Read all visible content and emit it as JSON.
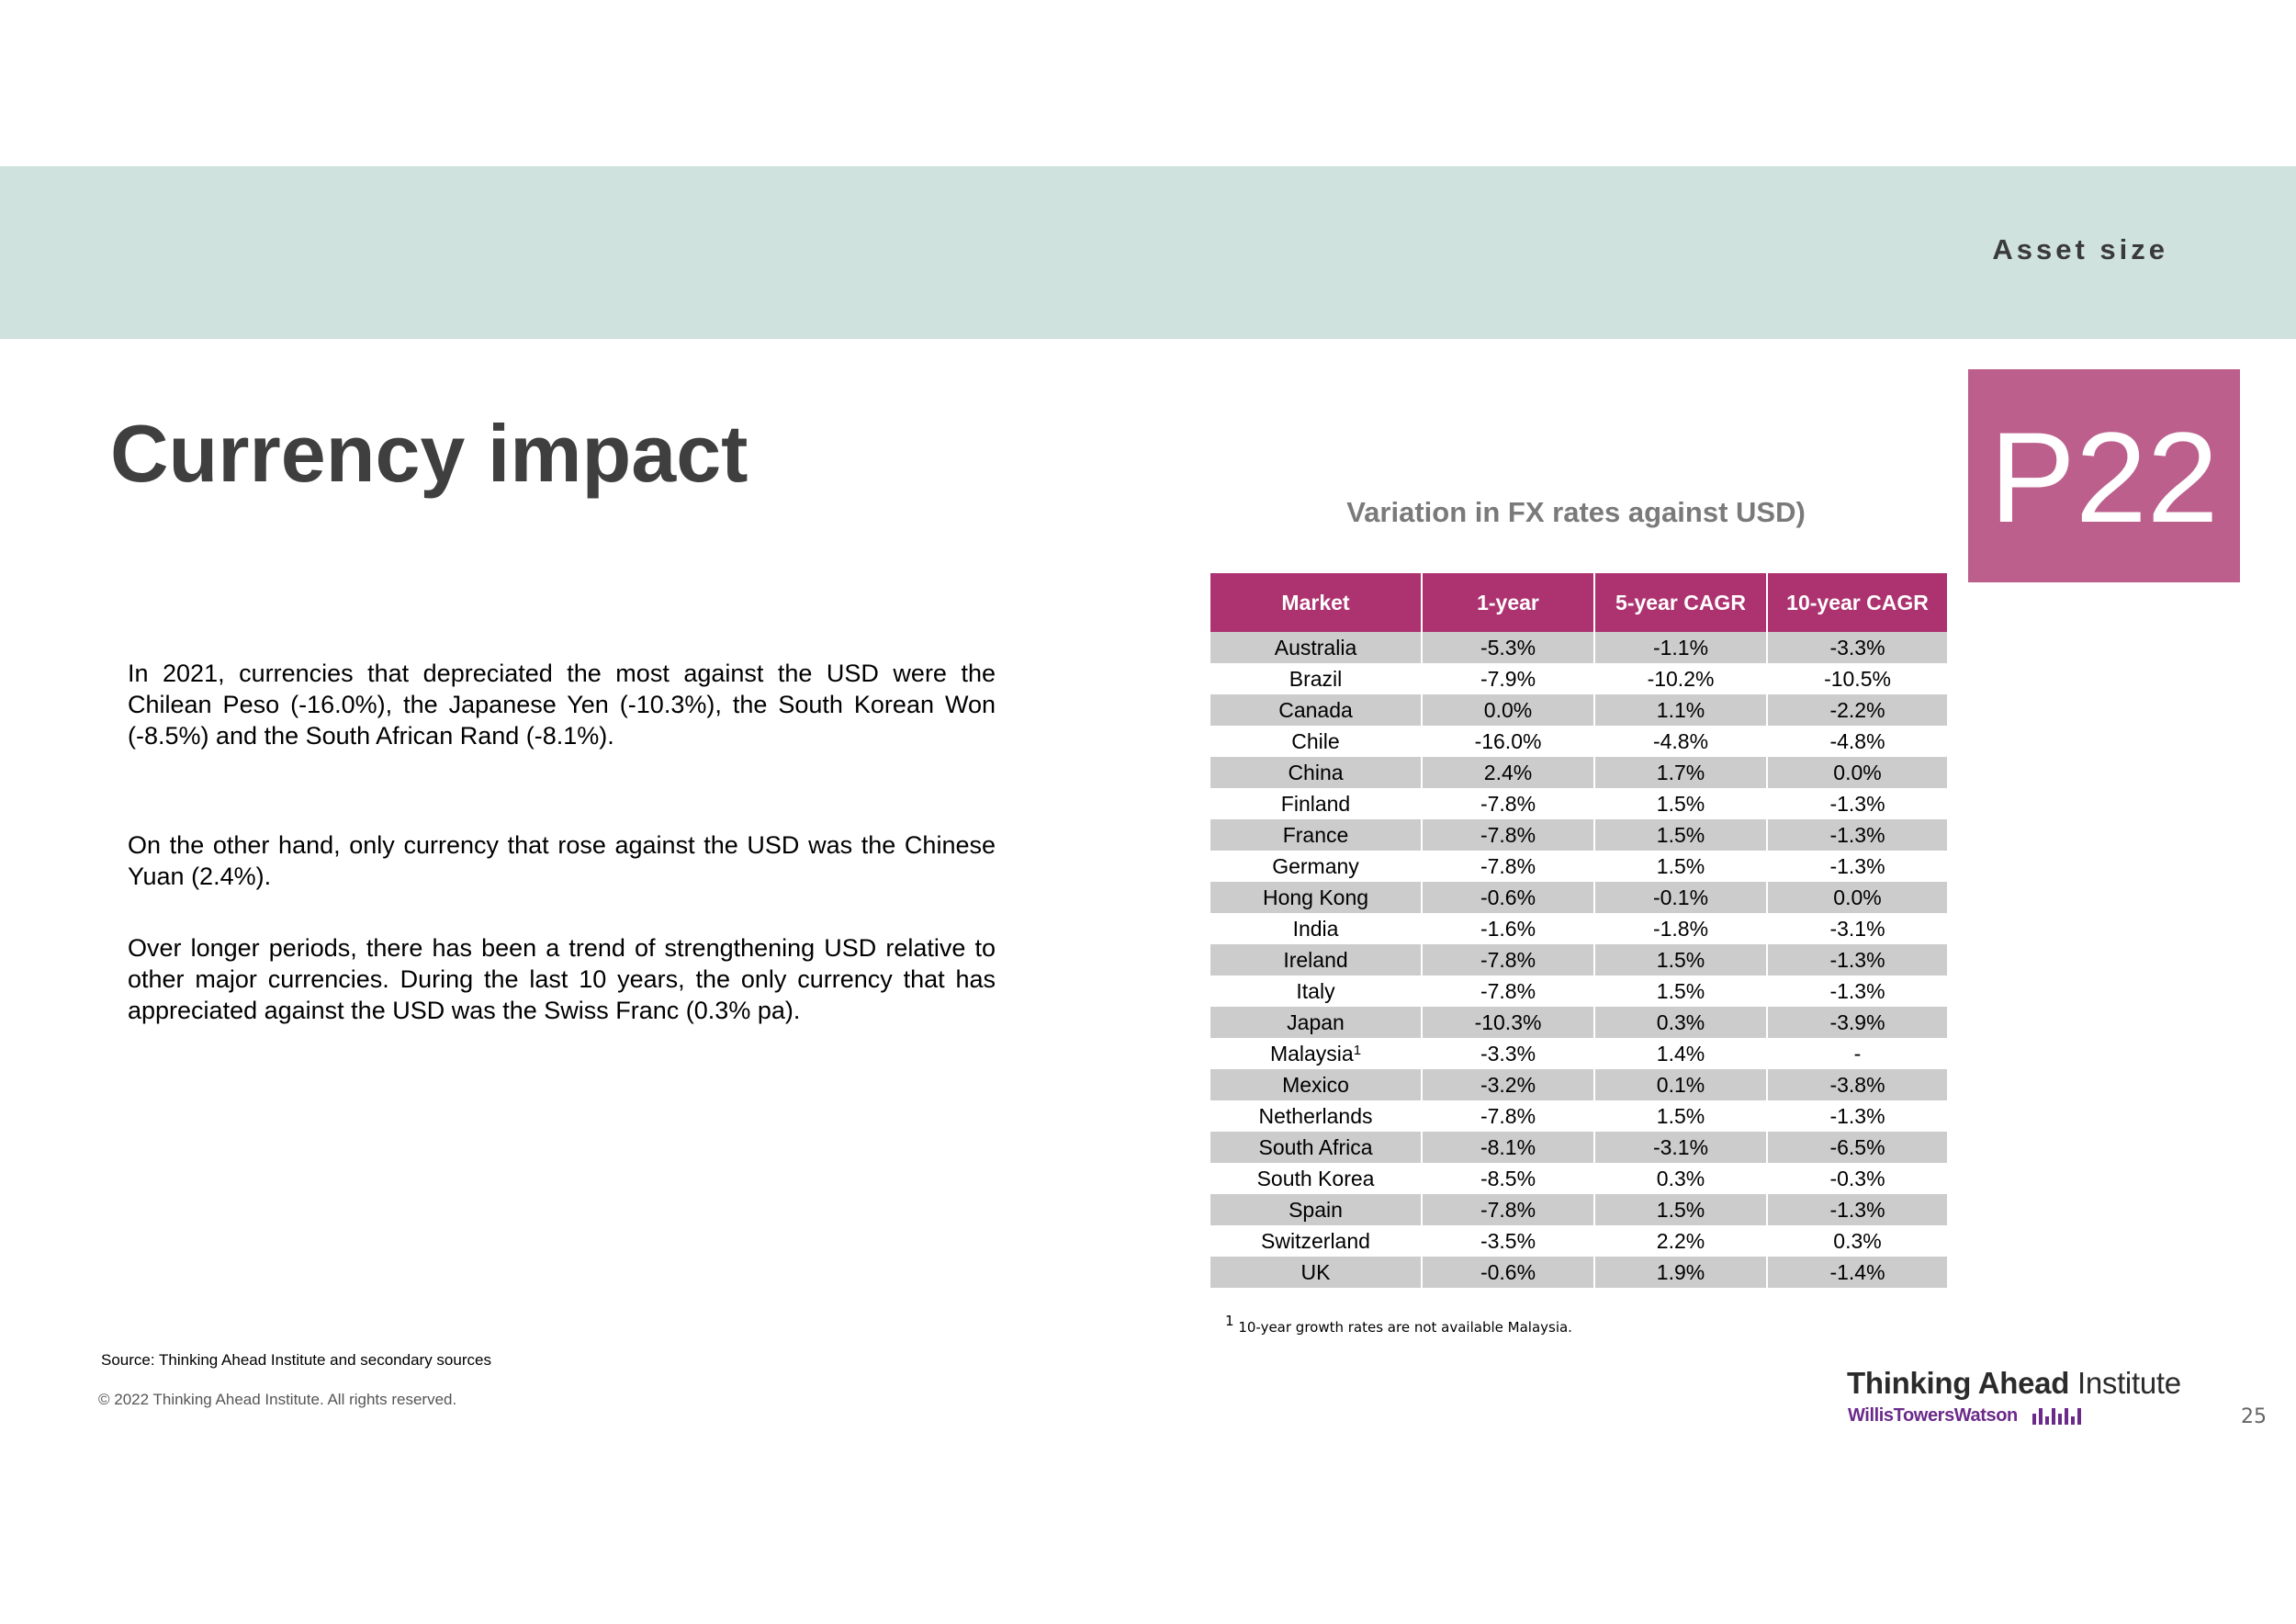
{
  "header": {
    "section_label": "Asset size",
    "page_badge": "P22",
    "colors": {
      "band": "#cfe2de",
      "badge": "#bc5f8c",
      "table_header": "#ad3370",
      "row_shade": "#cccccc"
    }
  },
  "title": "Currency impact",
  "body": {
    "paragraphs": [
      "In 2021, currencies that depreciated the most against the USD were the Chilean Peso (-16.0%), the Japanese Yen (-10.3%), the South Korean Won (-8.5%) and the South African Rand (-8.1%).",
      "On the other hand, only currency that rose against the USD was the Chinese Yuan (2.4%).",
      "Over longer periods, there has been a trend of strengthening USD relative to other major currencies. During the last 10 years, the only currency that has appreciated against the USD was the Swiss Franc (0.3% pa)."
    ]
  },
  "table": {
    "title": "Variation in FX rates against USD)",
    "headers": [
      "Market",
      "1-year",
      "5-year CAGR",
      "10-year CAGR"
    ],
    "rows": [
      {
        "market": "Australia",
        "marker": "",
        "one_year": "-5.3%",
        "five_year": "-1.1%",
        "ten_year": "-3.3%"
      },
      {
        "market": "Brazil",
        "marker": "",
        "one_year": "-7.9%",
        "five_year": "-10.2%",
        "ten_year": "-10.5%"
      },
      {
        "market": "Canada",
        "marker": "",
        "one_year": "0.0%",
        "five_year": "1.1%",
        "ten_year": "-2.2%"
      },
      {
        "market": "Chile",
        "marker": "",
        "one_year": "-16.0%",
        "five_year": "-4.8%",
        "ten_year": "-4.8%"
      },
      {
        "market": "China",
        "marker": "",
        "one_year": "2.4%",
        "five_year": "1.7%",
        "ten_year": "0.0%"
      },
      {
        "market": "Finland",
        "marker": "",
        "one_year": "-7.8%",
        "five_year": "1.5%",
        "ten_year": "-1.3%"
      },
      {
        "market": "France",
        "marker": "",
        "one_year": "-7.8%",
        "five_year": "1.5%",
        "ten_year": "-1.3%"
      },
      {
        "market": "Germany",
        "marker": "",
        "one_year": "-7.8%",
        "five_year": "1.5%",
        "ten_year": "-1.3%"
      },
      {
        "market": "Hong Kong",
        "marker": "",
        "one_year": "-0.6%",
        "five_year": "-0.1%",
        "ten_year": "0.0%"
      },
      {
        "market": "India",
        "marker": "",
        "one_year": "-1.6%",
        "five_year": "-1.8%",
        "ten_year": "-3.1%"
      },
      {
        "market": "Ireland",
        "marker": "",
        "one_year": "-7.8%",
        "five_year": "1.5%",
        "ten_year": "-1.3%"
      },
      {
        "market": "Italy",
        "marker": "",
        "one_year": "-7.8%",
        "five_year": "1.5%",
        "ten_year": "-1.3%"
      },
      {
        "market": "Japan",
        "marker": "",
        "one_year": "-10.3%",
        "five_year": "0.3%",
        "ten_year": "-3.9%"
      },
      {
        "market": "Malaysia",
        "marker": "1",
        "one_year": "-3.3%",
        "five_year": "1.4%",
        "ten_year": "-"
      },
      {
        "market": "Mexico",
        "marker": "",
        "one_year": "-3.2%",
        "five_year": "0.1%",
        "ten_year": "-3.8%"
      },
      {
        "market": "Netherlands",
        "marker": "",
        "one_year": "-7.8%",
        "five_year": "1.5%",
        "ten_year": "-1.3%"
      },
      {
        "market": "South Africa",
        "marker": "",
        "one_year": "-8.1%",
        "five_year": "-3.1%",
        "ten_year": "-6.5%"
      },
      {
        "market": "South Korea",
        "marker": "",
        "one_year": "-8.5%",
        "five_year": "0.3%",
        "ten_year": "-0.3%"
      },
      {
        "market": "Spain",
        "marker": "",
        "one_year": "-7.8%",
        "five_year": "1.5%",
        "ten_year": "-1.3%"
      },
      {
        "market": "Switzerland",
        "marker": "",
        "one_year": "-3.5%",
        "five_year": "2.2%",
        "ten_year": "0.3%"
      },
      {
        "market": "UK",
        "marker": "",
        "one_year": "-0.6%",
        "five_year": "1.9%",
        "ten_year": "-1.4%"
      }
    ],
    "footnote_marker": "1",
    "footnote": "10-year growth rates are not available Malaysia."
  },
  "footer": {
    "source": "Source: Thinking Ahead Institute and secondary sources",
    "copyright": "© 2022 Thinking Ahead Institute. All rights reserved.",
    "logo_main_bold": "Thinking Ahead",
    "logo_main_rest": " Institute",
    "logo_sub": "WillisTowersWatson",
    "slide_number": "25"
  }
}
